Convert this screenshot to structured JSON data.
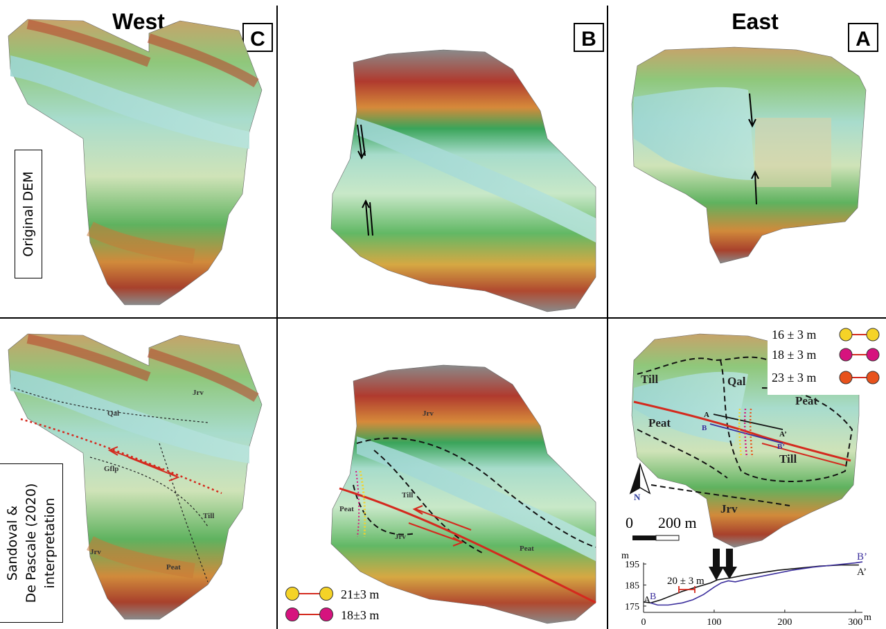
{
  "headers": {
    "west": "West",
    "east": "East"
  },
  "panel_letters": {
    "c": "C",
    "b": "B",
    "a": "A"
  },
  "row_labels": {
    "original": "Original DEM",
    "interpretation_line1": "Sandoval &",
    "interpretation_line2": "De Pascale (2020)",
    "interpretation_line3": "interpretation"
  },
  "units": {
    "qal": "Qal",
    "jrv": "Jrv",
    "gflp": "Gflp",
    "till": "Till",
    "peat": "Peat"
  },
  "offsets_a": [
    {
      "text": "16 ± 3 m",
      "color": "#f5d327"
    },
    {
      "text": "18 ± 3 m",
      "color": "#d6137e"
    },
    {
      "text": "23 ± 3 m",
      "color": "#e8521c"
    }
  ],
  "offsets_b": [
    {
      "text": "21±3 m",
      "color": "#f5d327"
    },
    {
      "text": "18±3 m",
      "color": "#d6137e"
    }
  ],
  "profile_labels": {
    "a": "A",
    "a_prime": "A’",
    "b": "B",
    "b_prime": "B’"
  },
  "scale_bar": {
    "zero": "0",
    "length": "200 m"
  },
  "north": "N",
  "chart_data": {
    "type": "line",
    "title": "",
    "xlabel": "m",
    "ylabel": "m",
    "xlim": [
      0,
      310
    ],
    "ylim": [
      172,
      198
    ],
    "x_ticks": [
      0,
      100,
      200,
      300
    ],
    "y_ticks": [
      175,
      185,
      195
    ],
    "annotation": "20 ± 3 m",
    "series": [
      {
        "name": "A",
        "x": [
          0,
          10,
          25,
          40,
          55,
          70,
          85,
          95,
          105,
          115,
          125,
          140,
          160,
          190,
          220,
          250,
          280,
          305
        ],
        "y": [
          177,
          176.5,
          178,
          180,
          182,
          183.5,
          185,
          186,
          187.5,
          188,
          188.5,
          189.5,
          190.5,
          192,
          193,
          194,
          194.5,
          194.5
        ]
      },
      {
        "name": "B",
        "x": [
          10,
          20,
          35,
          55,
          70,
          85,
          100,
          110,
          120,
          130,
          150,
          180,
          210,
          240,
          270,
          300,
          310
        ],
        "y": [
          176.5,
          175.5,
          175.5,
          176.5,
          178,
          180.5,
          184,
          186,
          187,
          186.5,
          188,
          190,
          192,
          193.5,
          194.5,
          195.5,
          196
        ]
      }
    ]
  }
}
